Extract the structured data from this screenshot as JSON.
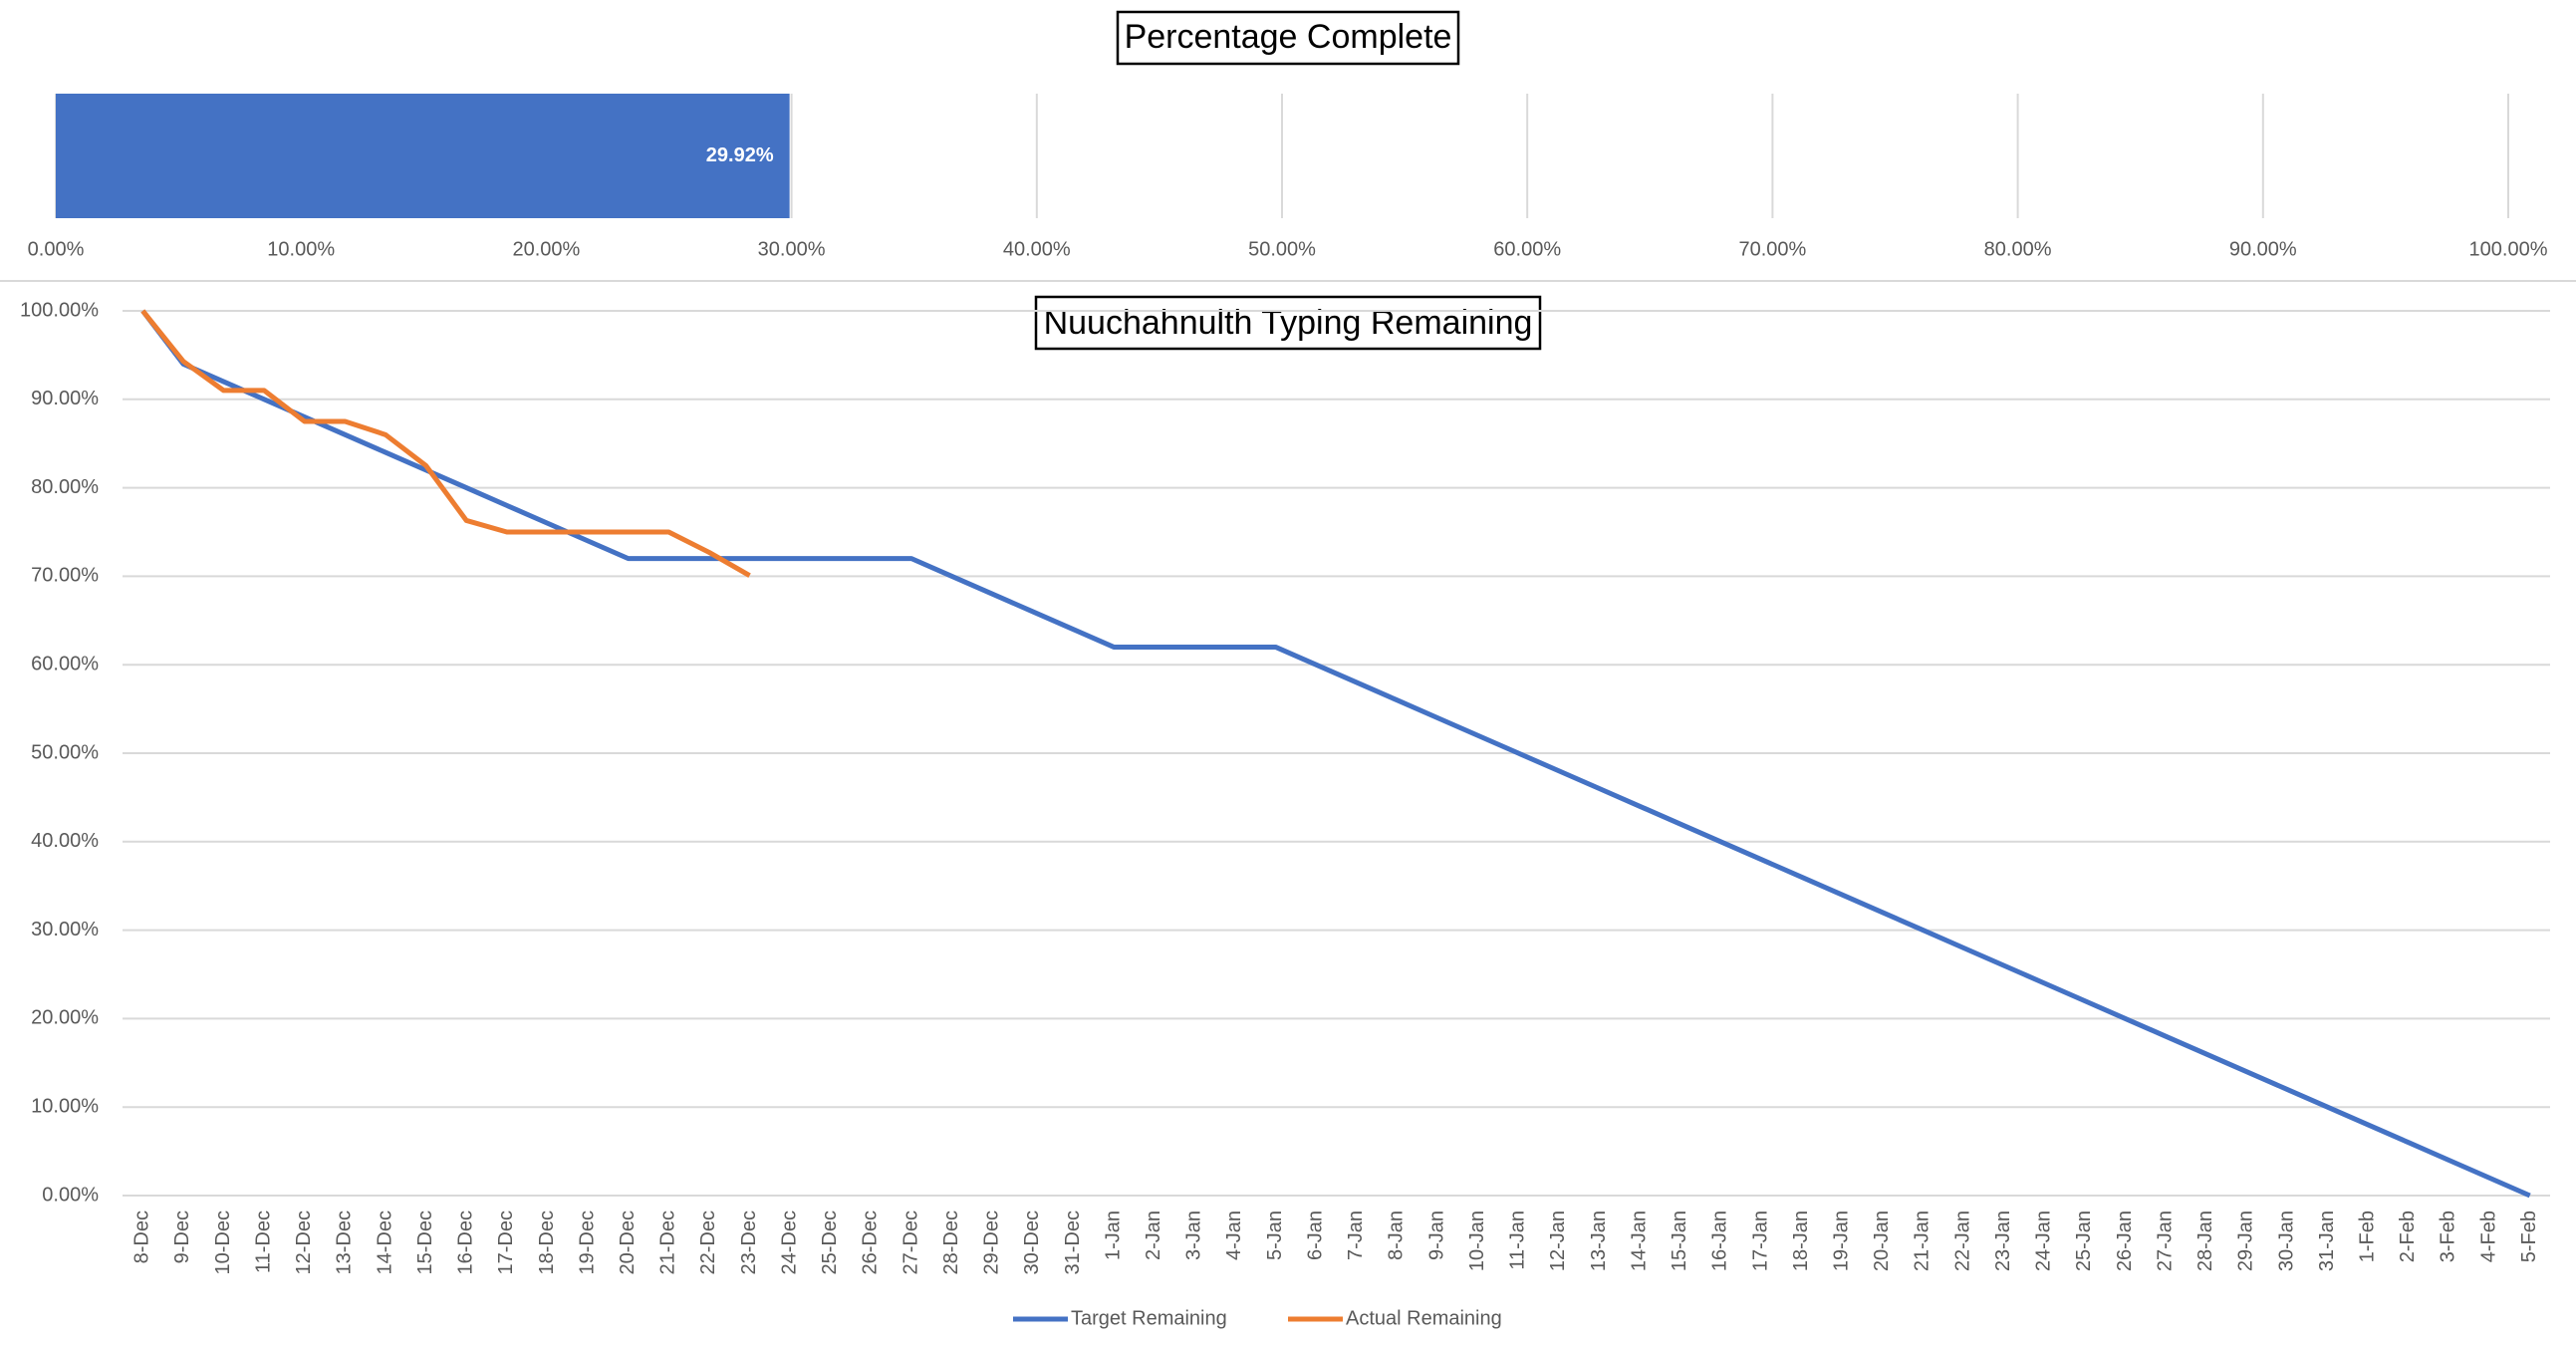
{
  "chart_data": [
    {
      "type": "bar",
      "orientation": "horizontal",
      "title": "Percentage Complete",
      "values": [
        29.92
      ],
      "value_labels": [
        "29.92%"
      ],
      "color": "#4472c4",
      "xlim": [
        0,
        100
      ],
      "xticks": [
        {
          "value": 0,
          "label": "0.00%"
        },
        {
          "value": 10,
          "label": "10.00%"
        },
        {
          "value": 20,
          "label": "20.00%"
        },
        {
          "value": 30,
          "label": "30.00%"
        },
        {
          "value": 40,
          "label": "40.00%"
        },
        {
          "value": 50,
          "label": "50.00%"
        },
        {
          "value": 60,
          "label": "60.00%"
        },
        {
          "value": 70,
          "label": "70.00%"
        },
        {
          "value": 80,
          "label": "80.00%"
        },
        {
          "value": 90,
          "label": "90.00%"
        },
        {
          "value": 100,
          "label": "100.00%"
        }
      ],
      "grid": true
    },
    {
      "type": "line",
      "title": "Nuuchahnulth Typing Remaining",
      "categories": [
        "8-Dec",
        "9-Dec",
        "10-Dec",
        "11-Dec",
        "12-Dec",
        "13-Dec",
        "14-Dec",
        "15-Dec",
        "16-Dec",
        "17-Dec",
        "18-Dec",
        "19-Dec",
        "20-Dec",
        "21-Dec",
        "22-Dec",
        "23-Dec",
        "24-Dec",
        "25-Dec",
        "26-Dec",
        "27-Dec",
        "28-Dec",
        "29-Dec",
        "30-Dec",
        "31-Dec",
        "1-Jan",
        "2-Jan",
        "3-Jan",
        "4-Jan",
        "5-Jan",
        "6-Jan",
        "7-Jan",
        "8-Jan",
        "9-Jan",
        "10-Jan",
        "11-Jan",
        "12-Jan",
        "13-Jan",
        "14-Jan",
        "15-Jan",
        "16-Jan",
        "17-Jan",
        "18-Jan",
        "19-Jan",
        "20-Jan",
        "21-Jan",
        "22-Jan",
        "23-Jan",
        "24-Jan",
        "25-Jan",
        "26-Jan",
        "27-Jan",
        "28-Jan",
        "29-Jan",
        "30-Jan",
        "31-Jan",
        "1-Feb",
        "2-Feb",
        "3-Feb",
        "4-Feb",
        "5-Feb"
      ],
      "series": [
        {
          "name": "Target Remaining",
          "color": "#4472c4",
          "values": [
            100,
            94,
            92,
            90,
            88,
            86,
            84,
            82,
            80,
            78,
            76,
            74,
            72,
            72,
            72,
            72,
            72,
            72,
            72,
            72,
            70,
            68,
            66,
            64,
            62,
            62,
            62,
            62,
            62,
            60,
            58,
            56,
            54,
            52,
            50,
            48,
            46,
            44,
            42,
            40,
            38,
            36,
            34,
            32,
            30,
            28,
            26,
            24,
            22,
            20,
            18,
            16,
            14,
            12,
            10,
            8,
            6,
            4,
            2,
            0
          ]
        },
        {
          "name": "Actual Remaining",
          "color": "#ed7d31",
          "values": [
            100,
            94.3,
            91,
            91,
            87.5,
            87.5,
            86,
            82.5,
            76.3,
            75,
            75,
            75,
            75,
            75,
            72.7,
            70.08,
            null,
            null,
            null,
            null,
            null,
            null,
            null,
            null,
            null,
            null,
            null,
            null,
            null,
            null,
            null,
            null,
            null,
            null,
            null,
            null,
            null,
            null,
            null,
            null,
            null,
            null,
            null,
            null,
            null,
            null,
            null,
            null,
            null,
            null,
            null,
            null,
            null,
            null,
            null,
            null,
            null,
            null,
            null,
            null
          ]
        }
      ],
      "ylim": [
        0,
        100
      ],
      "yticks": [
        {
          "value": 0,
          "label": "0.00%"
        },
        {
          "value": 10,
          "label": "10.00%"
        },
        {
          "value": 20,
          "label": "20.00%"
        },
        {
          "value": 30,
          "label": "30.00%"
        },
        {
          "value": 40,
          "label": "40.00%"
        },
        {
          "value": 50,
          "label": "50.00%"
        },
        {
          "value": 60,
          "label": "60.00%"
        },
        {
          "value": 70,
          "label": "70.00%"
        },
        {
          "value": 80,
          "label": "80.00%"
        },
        {
          "value": 90,
          "label": "90.00%"
        },
        {
          "value": 100,
          "label": "100.00%"
        }
      ],
      "grid": true,
      "legend": "bottom"
    }
  ]
}
